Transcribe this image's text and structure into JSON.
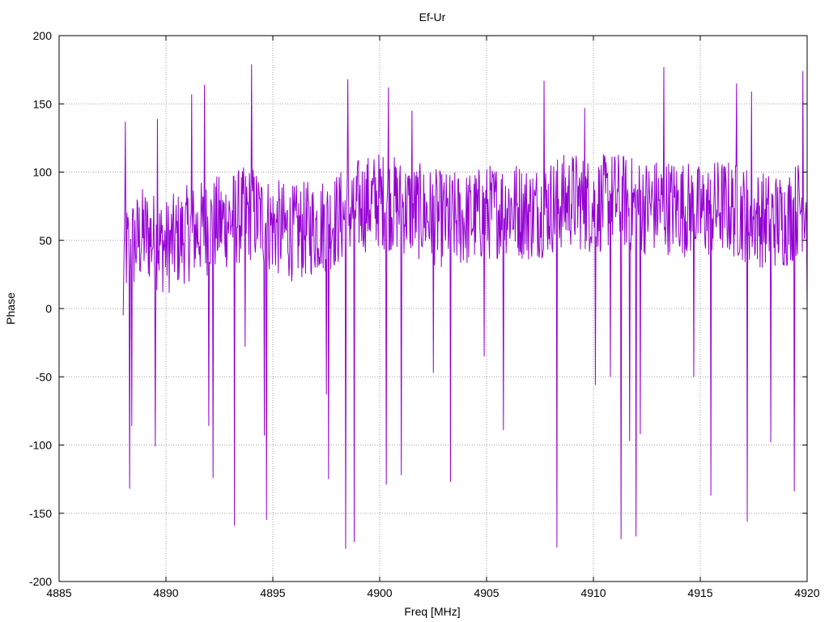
{
  "chart_data": {
    "type": "line",
    "title": "Ef-Ur",
    "xlabel": "Freq [MHz]",
    "ylabel": "Phase",
    "xlim": [
      4885,
      4920
    ],
    "ylim": [
      -200,
      200
    ],
    "xticks": [
      4885,
      4890,
      4895,
      4900,
      4905,
      4910,
      4915,
      4920
    ],
    "yticks": [
      -200,
      -150,
      -100,
      -50,
      0,
      50,
      100,
      150,
      200
    ],
    "grid": true,
    "series": [
      {
        "color": "#9400d3",
        "x_start": 4888.0,
        "x_end": 4920.0,
        "num_points": 1280,
        "center": [
          [
            4888.0,
            40
          ],
          [
            4889.0,
            55
          ],
          [
            4890.0,
            45
          ],
          [
            4891.0,
            55
          ],
          [
            4892.0,
            60
          ],
          [
            4893.0,
            65
          ],
          [
            4894.0,
            70
          ],
          [
            4895.0,
            60
          ],
          [
            4896.0,
            55
          ],
          [
            4897.0,
            60
          ],
          [
            4898.0,
            65
          ],
          [
            4899.0,
            75
          ],
          [
            4900.0,
            80
          ],
          [
            4901.0,
            75
          ],
          [
            4902.0,
            70
          ],
          [
            4903.0,
            65
          ],
          [
            4904.0,
            65
          ],
          [
            4905.0,
            70
          ],
          [
            4906.0,
            75
          ],
          [
            4907.0,
            70
          ],
          [
            4908.0,
            75
          ],
          [
            4909.0,
            80
          ],
          [
            4910.0,
            75
          ],
          [
            4911.0,
            80
          ],
          [
            4912.0,
            75
          ],
          [
            4913.0,
            75
          ],
          [
            4914.0,
            75
          ],
          [
            4915.0,
            70
          ],
          [
            4916.0,
            75
          ],
          [
            4917.0,
            70
          ],
          [
            4918.0,
            65
          ],
          [
            4919.0,
            65
          ],
          [
            4920.0,
            80
          ]
        ],
        "spikes": [
          [
            4888.1,
            137
          ],
          [
            4888.3,
            -132
          ],
          [
            4888.4,
            -86
          ],
          [
            4889.5,
            -101
          ],
          [
            4889.6,
            139
          ],
          [
            4891.2,
            157
          ],
          [
            4891.8,
            164
          ],
          [
            4892.0,
            -86
          ],
          [
            4892.2,
            -124
          ],
          [
            4893.2,
            -159
          ],
          [
            4893.7,
            -28
          ],
          [
            4894.0,
            179
          ],
          [
            4894.6,
            -93
          ],
          [
            4894.7,
            -155
          ],
          [
            4897.5,
            -63
          ],
          [
            4897.6,
            -125
          ],
          [
            4898.4,
            -176
          ],
          [
            4898.5,
            168
          ],
          [
            4898.8,
            -171
          ],
          [
            4900.3,
            -129
          ],
          [
            4900.4,
            162
          ],
          [
            4901.0,
            -122
          ],
          [
            4901.5,
            145
          ],
          [
            4902.5,
            -47
          ],
          [
            4903.3,
            -127
          ],
          [
            4904.9,
            -35
          ],
          [
            4905.8,
            -89
          ],
          [
            4907.7,
            167
          ],
          [
            4908.3,
            -175
          ],
          [
            4909.6,
            147
          ],
          [
            4910.1,
            -56
          ],
          [
            4910.8,
            -50
          ],
          [
            4911.3,
            -169
          ],
          [
            4911.7,
            -97
          ],
          [
            4912.0,
            -167
          ],
          [
            4912.2,
            -92
          ],
          [
            4913.3,
            177
          ],
          [
            4914.7,
            -50
          ],
          [
            4915.5,
            -137
          ],
          [
            4916.7,
            165
          ],
          [
            4917.2,
            -156
          ],
          [
            4917.4,
            159
          ],
          [
            4918.3,
            -98
          ],
          [
            4919.4,
            -134
          ],
          [
            4919.8,
            174
          ],
          [
            4920.0,
            2
          ]
        ],
        "noise_amplitude": 36
      }
    ]
  }
}
